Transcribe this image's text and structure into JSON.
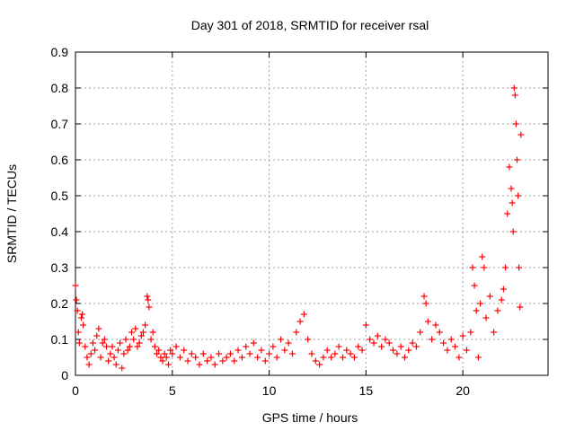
{
  "chart_data": {
    "type": "scatter",
    "title": "Day 301 of 2018, SRMTID for receiver rsal",
    "xlabel": "GPS time / hours",
    "ylabel": "SRMTID / TECUs",
    "xlim": [
      0,
      24.4
    ],
    "ylim": [
      0,
      0.9
    ],
    "x_ticks": [
      0,
      5,
      10,
      15,
      20
    ],
    "y_ticks": [
      0,
      0.1,
      0.2,
      0.3,
      0.4,
      0.5,
      0.6,
      0.7,
      0.8,
      0.9
    ],
    "x_tick_labels": [
      "0",
      "5",
      "10",
      "15",
      "20"
    ],
    "y_tick_labels": [
      "0",
      "0.1",
      "0.2",
      "0.3",
      "0.4",
      "0.5",
      "0.6",
      "0.7",
      "0.8",
      "0.9"
    ],
    "grid": true,
    "marker": "+",
    "colors": {
      "series": "#ff0000",
      "grid": "#a0a0a0",
      "axes": "#000000"
    },
    "series": [
      {
        "name": "SRMTID",
        "profile_description": "approx sampled points",
        "points": [
          [
            0.0,
            0.25
          ],
          [
            0.05,
            0.21
          ],
          [
            0.1,
            0.18
          ],
          [
            0.15,
            0.12
          ],
          [
            0.2,
            0.09
          ],
          [
            0.3,
            0.16
          ],
          [
            0.35,
            0.17
          ],
          [
            0.4,
            0.14
          ],
          [
            0.5,
            0.08
          ],
          [
            0.6,
            0.05
          ],
          [
            0.7,
            0.03
          ],
          [
            0.8,
            0.06
          ],
          [
            0.9,
            0.09
          ],
          [
            1.0,
            0.07
          ],
          [
            1.1,
            0.11
          ],
          [
            1.2,
            0.13
          ],
          [
            1.3,
            0.05
          ],
          [
            1.4,
            0.09
          ],
          [
            1.5,
            0.1
          ],
          [
            1.6,
            0.08
          ],
          [
            1.7,
            0.04
          ],
          [
            1.8,
            0.06
          ],
          [
            1.9,
            0.08
          ],
          [
            2.0,
            0.05
          ],
          [
            2.1,
            0.03
          ],
          [
            2.2,
            0.07
          ],
          [
            2.3,
            0.09
          ],
          [
            2.4,
            0.02
          ],
          [
            2.5,
            0.06
          ],
          [
            2.6,
            0.1
          ],
          [
            2.7,
            0.07
          ],
          [
            2.8,
            0.08
          ],
          [
            2.9,
            0.12
          ],
          [
            3.0,
            0.1
          ],
          [
            3.1,
            0.13
          ],
          [
            3.2,
            0.08
          ],
          [
            3.3,
            0.09
          ],
          [
            3.4,
            0.11
          ],
          [
            3.5,
            0.12
          ],
          [
            3.6,
            0.14
          ],
          [
            3.7,
            0.22
          ],
          [
            3.75,
            0.21
          ],
          [
            3.8,
            0.19
          ],
          [
            3.9,
            0.1
          ],
          [
            4.0,
            0.12
          ],
          [
            4.1,
            0.08
          ],
          [
            4.2,
            0.06
          ],
          [
            4.3,
            0.07
          ],
          [
            4.4,
            0.05
          ],
          [
            4.5,
            0.04
          ],
          [
            4.6,
            0.06
          ],
          [
            4.7,
            0.05
          ],
          [
            4.8,
            0.03
          ],
          [
            4.9,
            0.07
          ],
          [
            5.0,
            0.06
          ],
          [
            5.2,
            0.08
          ],
          [
            5.4,
            0.05
          ],
          [
            5.6,
            0.07
          ],
          [
            5.8,
            0.04
          ],
          [
            6.0,
            0.06
          ],
          [
            6.2,
            0.05
          ],
          [
            6.4,
            0.03
          ],
          [
            6.6,
            0.06
          ],
          [
            6.8,
            0.04
          ],
          [
            7.0,
            0.05
          ],
          [
            7.2,
            0.03
          ],
          [
            7.4,
            0.06
          ],
          [
            7.6,
            0.04
          ],
          [
            7.8,
            0.05
          ],
          [
            8.0,
            0.06
          ],
          [
            8.2,
            0.04
          ],
          [
            8.4,
            0.07
          ],
          [
            8.6,
            0.05
          ],
          [
            8.8,
            0.08
          ],
          [
            9.0,
            0.06
          ],
          [
            9.2,
            0.09
          ],
          [
            9.4,
            0.05
          ],
          [
            9.6,
            0.07
          ],
          [
            9.8,
            0.04
          ],
          [
            10.0,
            0.06
          ],
          [
            10.2,
            0.08
          ],
          [
            10.4,
            0.05
          ],
          [
            10.6,
            0.1
          ],
          [
            10.8,
            0.07
          ],
          [
            11.0,
            0.09
          ],
          [
            11.2,
            0.06
          ],
          [
            11.4,
            0.12
          ],
          [
            11.6,
            0.15
          ],
          [
            11.8,
            0.17
          ],
          [
            12.0,
            0.1
          ],
          [
            12.2,
            0.06
          ],
          [
            12.4,
            0.04
          ],
          [
            12.6,
            0.03
          ],
          [
            12.8,
            0.05
          ],
          [
            13.0,
            0.07
          ],
          [
            13.2,
            0.05
          ],
          [
            13.4,
            0.06
          ],
          [
            13.6,
            0.08
          ],
          [
            13.8,
            0.05
          ],
          [
            14.0,
            0.07
          ],
          [
            14.2,
            0.06
          ],
          [
            14.4,
            0.05
          ],
          [
            14.6,
            0.08
          ],
          [
            14.8,
            0.07
          ],
          [
            15.0,
            0.14
          ],
          [
            15.2,
            0.1
          ],
          [
            15.4,
            0.09
          ],
          [
            15.6,
            0.11
          ],
          [
            15.8,
            0.08
          ],
          [
            16.0,
            0.1
          ],
          [
            16.2,
            0.09
          ],
          [
            16.4,
            0.07
          ],
          [
            16.6,
            0.06
          ],
          [
            16.8,
            0.08
          ],
          [
            17.0,
            0.05
          ],
          [
            17.2,
            0.07
          ],
          [
            17.4,
            0.09
          ],
          [
            17.6,
            0.08
          ],
          [
            17.8,
            0.12
          ],
          [
            18.0,
            0.22
          ],
          [
            18.1,
            0.2
          ],
          [
            18.2,
            0.15
          ],
          [
            18.4,
            0.1
          ],
          [
            18.6,
            0.14
          ],
          [
            18.8,
            0.12
          ],
          [
            19.0,
            0.09
          ],
          [
            19.2,
            0.07
          ],
          [
            19.4,
            0.1
          ],
          [
            19.6,
            0.08
          ],
          [
            19.8,
            0.05
          ],
          [
            20.0,
            0.11
          ],
          [
            20.2,
            0.07
          ],
          [
            20.4,
            0.12
          ],
          [
            20.5,
            0.3
          ],
          [
            20.6,
            0.25
          ],
          [
            20.7,
            0.18
          ],
          [
            20.8,
            0.05
          ],
          [
            20.9,
            0.2
          ],
          [
            21.0,
            0.33
          ],
          [
            21.1,
            0.3
          ],
          [
            21.2,
            0.16
          ],
          [
            21.4,
            0.22
          ],
          [
            21.6,
            0.12
          ],
          [
            21.8,
            0.18
          ],
          [
            22.0,
            0.21
          ],
          [
            22.1,
            0.24
          ],
          [
            22.2,
            0.3
          ],
          [
            22.3,
            0.45
          ],
          [
            22.4,
            0.58
          ],
          [
            22.5,
            0.52
          ],
          [
            22.55,
            0.48
          ],
          [
            22.6,
            0.4
          ],
          [
            22.65,
            0.8
          ],
          [
            22.7,
            0.78
          ],
          [
            22.75,
            0.7
          ],
          [
            22.8,
            0.6
          ],
          [
            22.85,
            0.5
          ],
          [
            22.9,
            0.3
          ],
          [
            22.95,
            0.19
          ],
          [
            23.0,
            0.67
          ]
        ]
      }
    ]
  }
}
